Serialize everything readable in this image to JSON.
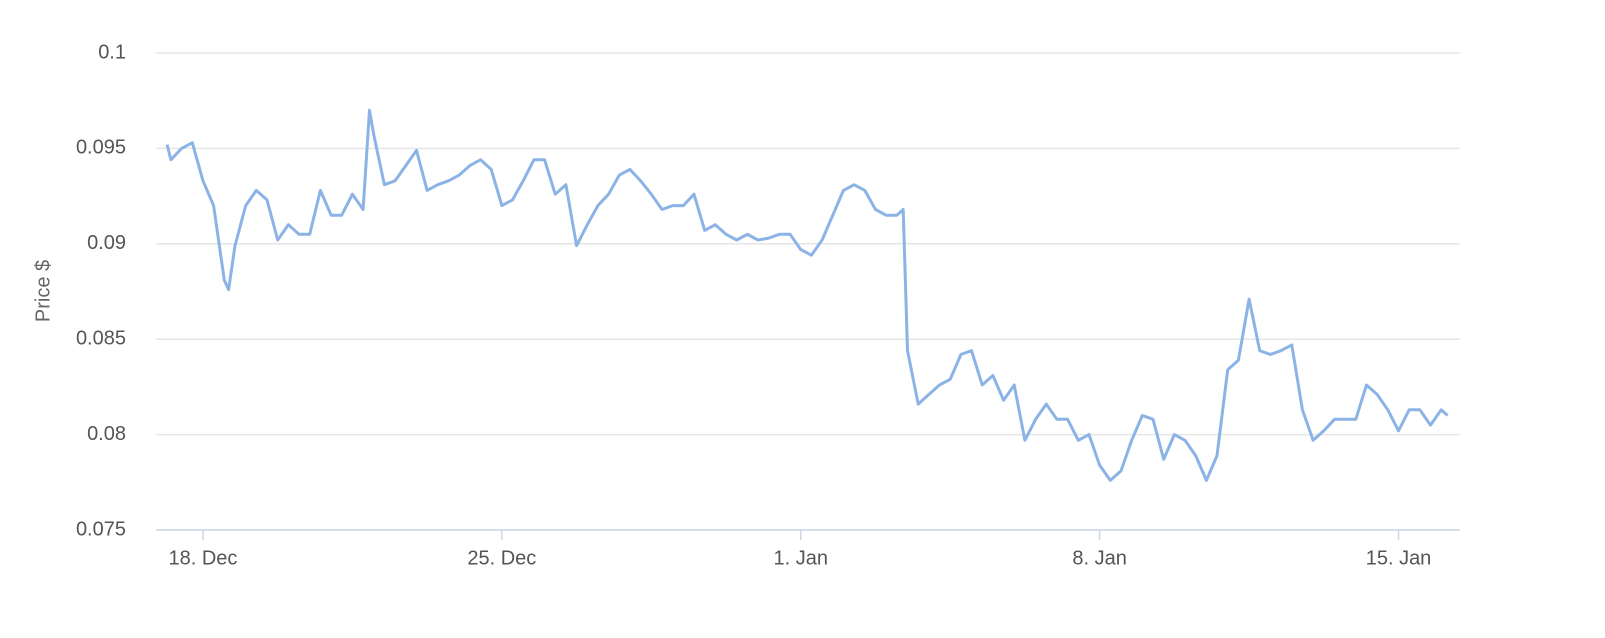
{
  "chart_data": {
    "type": "line",
    "y_label": "Price $",
    "x": [
      -0.84,
      -0.75,
      -0.5,
      -0.25,
      0,
      0.25,
      0.5,
      0.6,
      0.75,
      1,
      1.25,
      1.5,
      1.75,
      2,
      2.25,
      2.5,
      2.75,
      3,
      3.25,
      3.5,
      3.75,
      3.9,
      4,
      4.25,
      4.5,
      4.75,
      5,
      5.25,
      5.5,
      5.75,
      6,
      6.25,
      6.5,
      6.75,
      7,
      7.25,
      7.5,
      7.75,
      8,
      8.25,
      8.5,
      8.75,
      9,
      9.25,
      9.5,
      9.75,
      10,
      10.25,
      10.5,
      10.75,
      11,
      11.25,
      11.5,
      11.75,
      12,
      12.25,
      12.5,
      12.75,
      13,
      13.25,
      13.5,
      13.75,
      14,
      14.25,
      14.5,
      14.75,
      15,
      15.25,
      15.5,
      15.75,
      16,
      16.25,
      16.4,
      16.5,
      16.75,
      17,
      17.25,
      17.5,
      17.75,
      18,
      18.25,
      18.5,
      18.75,
      19,
      19.25,
      19.5,
      19.75,
      20,
      20.25,
      20.5,
      20.75,
      21,
      21.25,
      21.5,
      21.75,
      22,
      22.25,
      22.5,
      22.75,
      23,
      23.25,
      23.5,
      23.75,
      24,
      24.25,
      24.5,
      24.75,
      25,
      25.25,
      25.5,
      25.75,
      26,
      26.25,
      26.5,
      26.75,
      27,
      27.25,
      27.5,
      27.75,
      28,
      28.25,
      28.5,
      28.75,
      29,
      29.15
    ],
    "series": [
      {
        "name": "Price",
        "color": "#8cb3e6",
        "values": [
          0.0952,
          0.0944,
          0.095,
          0.0953,
          0.0933,
          0.092,
          0.0881,
          0.0876,
          0.0899,
          0.092,
          0.0928,
          0.0923,
          0.0902,
          0.091,
          0.0905,
          0.0905,
          0.0928,
          0.0915,
          0.0915,
          0.0926,
          0.0918,
          0.097,
          0.0957,
          0.0931,
          0.0933,
          0.0941,
          0.0949,
          0.0928,
          0.0931,
          0.0933,
          0.0936,
          0.0941,
          0.0944,
          0.0939,
          0.092,
          0.0923,
          0.0933,
          0.0944,
          0.0944,
          0.0926,
          0.0931,
          0.0899,
          0.091,
          0.092,
          0.0926,
          0.0936,
          0.0939,
          0.0933,
          0.0926,
          0.0918,
          0.092,
          0.092,
          0.0926,
          0.0907,
          0.091,
          0.0905,
          0.0902,
          0.0905,
          0.0902,
          0.0903,
          0.0905,
          0.0905,
          0.0897,
          0.0894,
          0.0902,
          0.0915,
          0.0928,
          0.0931,
          0.0928,
          0.0918,
          0.0915,
          0.0915,
          0.0918,
          0.0844,
          0.0816,
          0.0821,
          0.0826,
          0.0829,
          0.0842,
          0.0844,
          0.0826,
          0.0831,
          0.0818,
          0.0826,
          0.0797,
          0.0808,
          0.0816,
          0.0808,
          0.0808,
          0.0797,
          0.08,
          0.0784,
          0.0776,
          0.0781,
          0.0797,
          0.081,
          0.0808,
          0.0787,
          0.08,
          0.0797,
          0.0789,
          0.0776,
          0.0789,
          0.0834,
          0.0839,
          0.0871,
          0.0844,
          0.0842,
          0.0844,
          0.0847,
          0.0813,
          0.0797,
          0.0802,
          0.0808,
          0.0808,
          0.0808,
          0.0826,
          0.0821,
          0.0813,
          0.0802,
          0.0813,
          0.0813,
          0.0805,
          0.0813,
          0.081
        ]
      }
    ],
    "xlim": [
      -1.1,
      29.44
    ],
    "xticks": [
      {
        "value": 0,
        "label": "18. Dec"
      },
      {
        "value": 7,
        "label": "25. Dec"
      },
      {
        "value": 14,
        "label": "1. Jan"
      },
      {
        "value": 21,
        "label": "8. Jan"
      },
      {
        "value": 28,
        "label": "15. Jan"
      }
    ],
    "ylim": [
      0.075,
      0.1
    ],
    "yticks": [
      0.075,
      0.08,
      0.085,
      0.09,
      0.095,
      0.1
    ],
    "grid": true
  }
}
